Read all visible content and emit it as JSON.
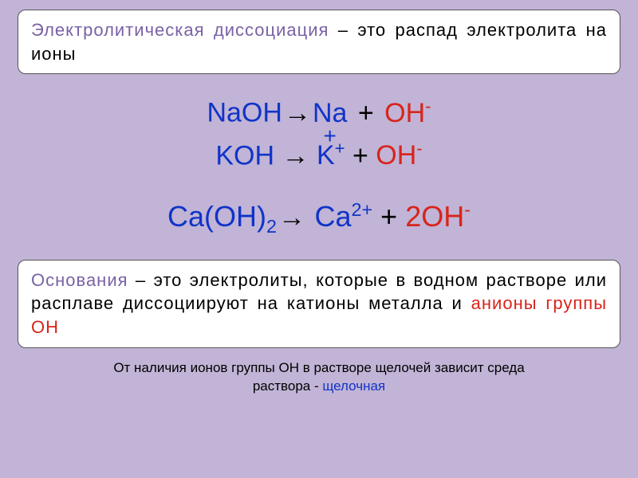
{
  "colors": {
    "background": "#c1b4d6",
    "box_bg": "#ffffff",
    "box_border": "#555555",
    "title": "#7962a5",
    "text": "#000000",
    "blue": "#1034c8",
    "red": "#d8241a",
    "footer_accent": "#1034c8"
  },
  "fonts": {
    "body_size": 22,
    "chem_size": 34,
    "chem_size_large": 36,
    "footer_size": 17
  },
  "top_box": {
    "title": "Электролитическая диссоциация",
    "rest": " – это распад электролита на ионы"
  },
  "equations": {
    "eq1": {
      "lhs": "NaOH",
      "arrow": "→",
      "r1": "Na",
      "r1_charge_below": "+",
      "plus": " + ",
      "r2": "OH",
      "r2_sup": "-"
    },
    "eq2": {
      "lhs": "KOH",
      "arrow": " → ",
      "r1": "K",
      "r1_sup": "+",
      "plus": "  + ",
      "r2": "OH",
      "r2_sup": "-"
    },
    "eq3": {
      "lhs": "Ca(OH)",
      "lhs_sub": "2",
      "arrow": "→ ",
      "r1": "Ca",
      "r1_sup": "2+",
      "plus": " + ",
      "r2_coef": "2",
      "r2": "OH",
      "r2_sup": "-"
    }
  },
  "bottom_box": {
    "title": "Основания",
    "mid": " – это электролиты, которые в водном растворе или расплаве диссоциируют на катионы металла и ",
    "red": "анионы группы OH"
  },
  "footer": {
    "line1a": "От наличия ионов группы OH в растворе щелочей  зависит среда",
    "line2a": "раствора - ",
    "line2b": "щелочная"
  }
}
